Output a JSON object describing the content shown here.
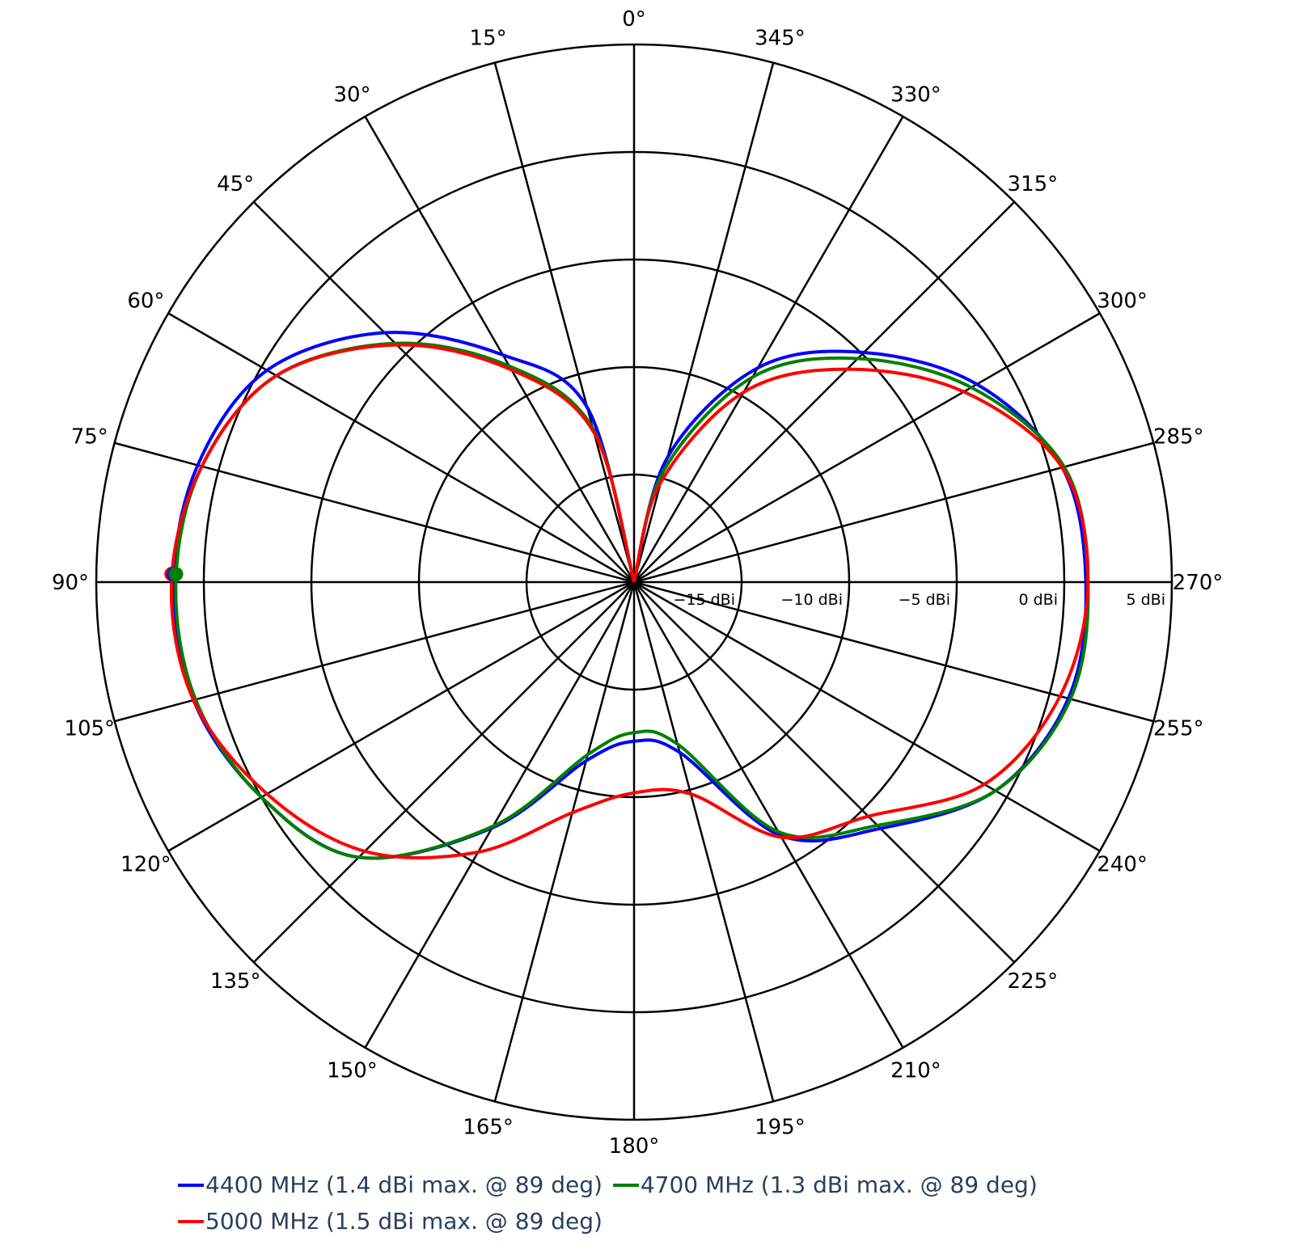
{
  "chart_data": {
    "type": "polar",
    "title": "",
    "angular_axis": {
      "direction": "counterclockwise",
      "rotation_zero": "top",
      "tick_step_deg": 15,
      "tick_labels": [
        "0°",
        "15°",
        "30°",
        "45°",
        "60°",
        "75°",
        "90°",
        "105°",
        "120°",
        "135°",
        "150°",
        "165°",
        "180°",
        "195°",
        "210°",
        "225°",
        "240°",
        "255°",
        "270°",
        "285°",
        "300°",
        "315°",
        "330°",
        "345°"
      ]
    },
    "radial_axis": {
      "unit": "dBi",
      "range": [
        -20,
        5
      ],
      "tick_values": [
        -15,
        -10,
        -5,
        0,
        5
      ],
      "tick_labels": [
        "−15 dBi",
        "−10 dBi",
        "−5 dBi",
        "0 dBi",
        "5 dBi"
      ],
      "label_angle_deg": 270
    },
    "angles_deg": [
      0,
      15,
      30,
      45,
      60,
      75,
      90,
      105,
      120,
      135,
      150,
      165,
      180,
      195,
      210,
      225,
      240,
      255,
      270,
      285,
      300,
      315,
      330,
      345,
      360
    ],
    "series": [
      {
        "name": "4400 MHz (1.4 dBi max. @ 89 deg)",
        "color": "#0000ff",
        "values": [
          -20,
          -11.6,
          -7.8,
          -3.6,
          -0.3,
          1.0,
          1.4,
          1.2,
          0.0,
          -1.9,
          -6.8,
          -11.4,
          -12.6,
          -11.8,
          -6.4,
          -3.8,
          -0.6,
          0.9,
          1.0,
          0.6,
          -1.6,
          -4.9,
          -8.5,
          -14.0,
          -20
        ],
        "max_marker": {
          "angle": 89,
          "value": 1.4
        }
      },
      {
        "name": "4700 MHz (1.3 dBi max. @ 89 deg)",
        "color": "#008000",
        "values": [
          -20,
          -12.6,
          -8.4,
          -4.3,
          -0.8,
          0.8,
          1.3,
          1.1,
          0.0,
          -1.9,
          -6.9,
          -11.7,
          -13.0,
          -12.2,
          -6.6,
          -4.0,
          -0.6,
          1.0,
          1.1,
          0.7,
          -1.9,
          -5.3,
          -9.0,
          -14.6,
          -20
        ],
        "max_marker": {
          "angle": 89,
          "value": 1.3
        }
      },
      {
        "name": "5000 MHz (1.5 dBi max. @ 89 deg)",
        "color": "#ff0000",
        "values": [
          -20,
          -12.8,
          -8.6,
          -4.4,
          -0.8,
          0.8,
          1.5,
          1.2,
          -0.3,
          -2.3,
          -5.5,
          -8.9,
          -10.2,
          -9.8,
          -6.3,
          -4.6,
          -1.2,
          0.5,
          1.1,
          0.6,
          -2.3,
          -6.0,
          -9.8,
          -15.2,
          -20
        ],
        "max_marker": {
          "angle": 89,
          "value": 1.5
        }
      }
    ],
    "legend_position": "bottom"
  },
  "legend": {
    "items": [
      {
        "label": "4400 MHz (1.4 dBi max. @ 89 deg)",
        "color": "#0000ff"
      },
      {
        "label": "4700 MHz (1.3 dBi max. @ 89 deg)",
        "color": "#008000"
      },
      {
        "label": "5000 MHz (1.5 dBi max. @ 89 deg)",
        "color": "#ff0000"
      }
    ]
  }
}
